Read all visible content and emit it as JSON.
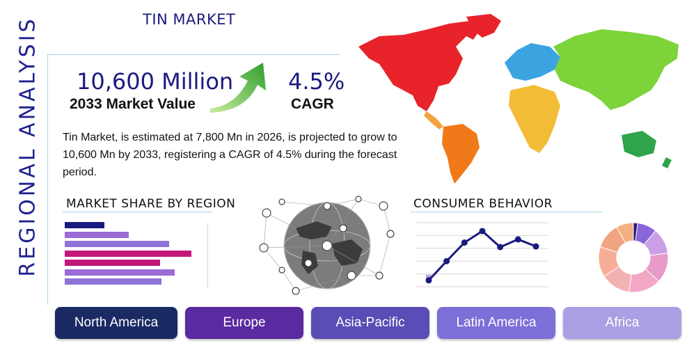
{
  "header": {
    "title": "TIN MARKET",
    "side_title": "REGIONAL ANALYSIS"
  },
  "stats": {
    "market_value": "10,600 Million",
    "market_value_label": "2033 Market Value",
    "cagr": "4.5%",
    "cagr_label": "CAGR"
  },
  "description": "Tin Market, is estimated at 7,800 Mn in 2026, is projected to grow to 10,600 Mn by 2033, registering a CAGR of 4.5% during the forecast period.",
  "sections": {
    "market_share": "MARKET SHARE BY REGION",
    "consumer_behavior": "CONSUMER BEHAVIOR"
  },
  "regions": [
    "North America",
    "Europe",
    "Asia-Pacific",
    "Latin America",
    "Africa"
  ],
  "colors": {
    "navy": "#1a1a80",
    "arrow_green": "#5cbf3a",
    "bar_colors": [
      "#1a1a80",
      "#9b6bd6",
      "#8e74d8",
      "#c2187a",
      "#c2187a",
      "#9b6bd6",
      "#8e74d8"
    ],
    "region_colors": [
      "#1a2a63",
      "#5a2aa0",
      "#5a4db5",
      "#7d6fd8",
      "#a9a0e3"
    ]
  },
  "chart_data": [
    {
      "type": "bar",
      "title": "MARKET SHARE BY REGION",
      "orientation": "horizontal",
      "values": [
        0.28,
        0.45,
        0.73,
        0.89,
        0.67,
        0.77,
        0.68
      ],
      "xlim": [
        0,
        1
      ]
    },
    {
      "type": "line",
      "title": "CONSUMER BEHAVIOR",
      "x": [
        1,
        2,
        3,
        4,
        5,
        6,
        7
      ],
      "values": [
        1.0,
        4.0,
        6.9,
        8.7,
        6.2,
        7.4,
        6.3
      ],
      "ylim": [
        0,
        10
      ]
    },
    {
      "type": "pie",
      "style": "donut",
      "values": [
        2,
        9,
        12,
        14,
        15,
        14,
        14,
        12,
        8
      ],
      "colors": [
        "#2a1a80",
        "#8a66d8",
        "#c9a0e6",
        "#e69bc9",
        "#f2a8c4",
        "#f4b1b1",
        "#f6ad95",
        "#f0a580",
        "#f3b080"
      ]
    }
  ]
}
